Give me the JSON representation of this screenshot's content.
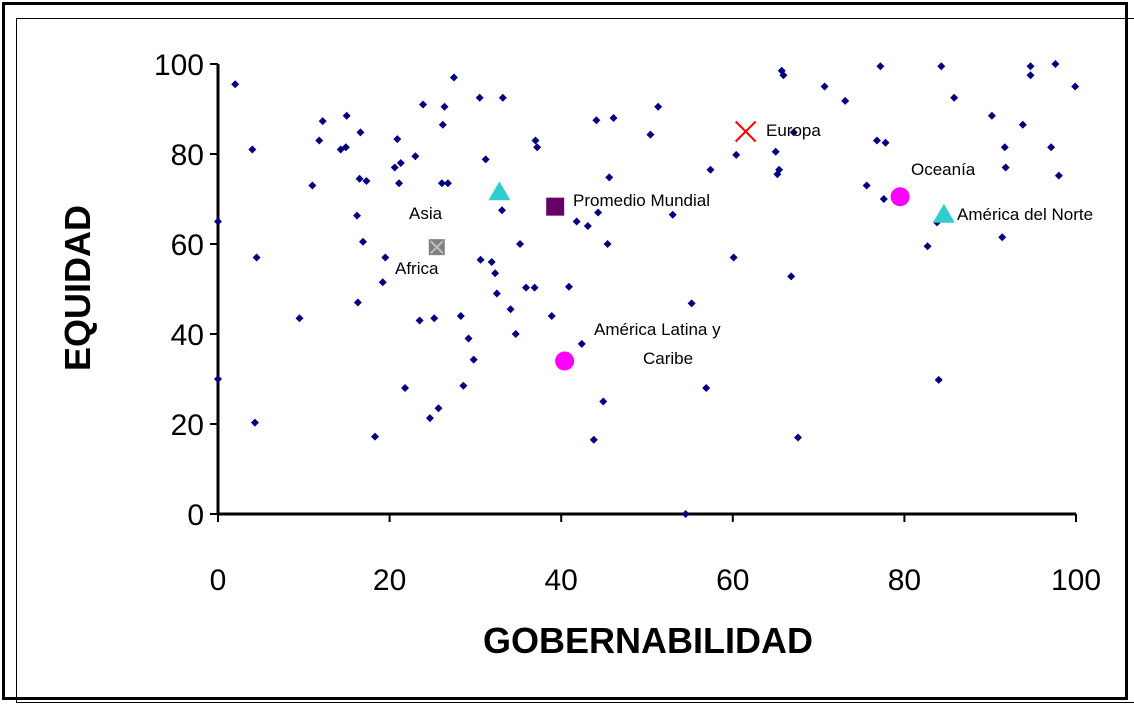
{
  "chart_data": {
    "type": "scatter",
    "xlabel": "GOBERNABILIDAD",
    "ylabel": "EQUIDAD",
    "xlim": [
      0,
      100
    ],
    "ylim": [
      0,
      100
    ],
    "xticks": [
      "0",
      "20",
      "40",
      "60",
      "80",
      "100"
    ],
    "yticks": [
      "0",
      "20",
      "40",
      "60",
      "80",
      "100"
    ],
    "grid": false,
    "legend": "none",
    "colors": {
      "countries": "#000080",
      "europa": "#ff0000",
      "promedio": "#660066",
      "triangle": "#33cccc",
      "circle": "#ff00ff",
      "africa": "#808080"
    },
    "series": [
      {
        "marker": "diamond",
        "points": [
          [
            0,
            65
          ],
          [
            0,
            30
          ],
          [
            2,
            95.5
          ],
          [
            4,
            81
          ],
          [
            4.5,
            57
          ],
          [
            4.3,
            20.3
          ],
          [
            9.5,
            43.5
          ],
          [
            11,
            73
          ],
          [
            11.8,
            83
          ],
          [
            12.2,
            87.3
          ],
          [
            14.3,
            81
          ],
          [
            14.9,
            81.5
          ],
          [
            15,
            88.5
          ],
          [
            16.2,
            66.3
          ],
          [
            16.3,
            47
          ],
          [
            16.5,
            74.5
          ],
          [
            16.6,
            84.8
          ],
          [
            16.9,
            60.5
          ],
          [
            17.3,
            74
          ],
          [
            18.3,
            17.2
          ],
          [
            19.2,
            51.5
          ],
          [
            19.5,
            57
          ],
          [
            20.6,
            77
          ],
          [
            20.9,
            83.3
          ],
          [
            21.1,
            73.5
          ],
          [
            21.3,
            78
          ],
          [
            21.8,
            28
          ],
          [
            23,
            79.5
          ],
          [
            23.5,
            43
          ],
          [
            23.9,
            91
          ],
          [
            24.7,
            21.3
          ],
          [
            25.2,
            43.5
          ],
          [
            25.7,
            23.5
          ],
          [
            26.1,
            73.5
          ],
          [
            26.2,
            86.5
          ],
          [
            26.4,
            90.5
          ],
          [
            26.8,
            73.5
          ],
          [
            27.5,
            97
          ],
          [
            28.3,
            44
          ],
          [
            28.6,
            28.5
          ],
          [
            29.2,
            39
          ],
          [
            29.8,
            34.3
          ],
          [
            30.5,
            92.5
          ],
          [
            30.6,
            56.5
          ],
          [
            31.2,
            78.8
          ],
          [
            31.9,
            56
          ],
          [
            32.3,
            53.5
          ],
          [
            32.5,
            49
          ],
          [
            33.1,
            67.5
          ],
          [
            33.2,
            92.5
          ],
          [
            34.1,
            45.5
          ],
          [
            34.7,
            40
          ],
          [
            35.2,
            60
          ],
          [
            35.9,
            50.3
          ],
          [
            36.9,
            50.3
          ],
          [
            37,
            83
          ],
          [
            37.2,
            81.5
          ],
          [
            38.9,
            44
          ],
          [
            39.5,
            67.5
          ],
          [
            40.9,
            50.5
          ],
          [
            41.8,
            65
          ],
          [
            42.4,
            37.8
          ],
          [
            43.1,
            64
          ],
          [
            43.8,
            16.5
          ],
          [
            44.1,
            87.5
          ],
          [
            44.3,
            67
          ],
          [
            44.9,
            25
          ],
          [
            45.4,
            60
          ],
          [
            45.6,
            74.8
          ],
          [
            46.1,
            88
          ],
          [
            50.4,
            84.3
          ],
          [
            51.3,
            90.5
          ],
          [
            53,
            66.5
          ],
          [
            54.5,
            0
          ],
          [
            55.2,
            46.8
          ],
          [
            56.9,
            28
          ],
          [
            57.4,
            76.5
          ],
          [
            60.1,
            57
          ],
          [
            60.4,
            79.8
          ],
          [
            65,
            80.5
          ],
          [
            65.2,
            75.5
          ],
          [
            65.4,
            76.5
          ],
          [
            65.7,
            98.5
          ],
          [
            65.9,
            97.5
          ],
          [
            66.8,
            52.8
          ],
          [
            67.1,
            84.8
          ],
          [
            67.6,
            17
          ],
          [
            70.7,
            95
          ],
          [
            73.1,
            91.8
          ],
          [
            75.6,
            73
          ],
          [
            76.8,
            83
          ],
          [
            77.2,
            99.5
          ],
          [
            77.6,
            70
          ],
          [
            77.8,
            82.5
          ],
          [
            82.7,
            59.5
          ],
          [
            83.8,
            64.8
          ],
          [
            84,
            29.8
          ],
          [
            84.3,
            99.5
          ],
          [
            85.8,
            92.5
          ],
          [
            90.2,
            88.5
          ],
          [
            91.4,
            61.5
          ],
          [
            91.7,
            81.5
          ],
          [
            91.8,
            77
          ],
          [
            93.8,
            86.5
          ],
          [
            94.7,
            97.5
          ],
          [
            94.7,
            99.5
          ],
          [
            97.1,
            81.5
          ],
          [
            97.6,
            100
          ],
          [
            98,
            75.2
          ],
          [
            99.9,
            95
          ]
        ]
      },
      {
        "name": "Europa",
        "marker": "x",
        "points": [
          [
            61.5,
            85
          ]
        ]
      },
      {
        "name": "Promedio Mundial",
        "marker": "square",
        "points": [
          [
            39.3,
            68.3
          ]
        ]
      },
      {
        "name": "Asia",
        "marker": "triangle",
        "points": [
          [
            32.8,
            71.5
          ]
        ]
      },
      {
        "name": "Africa",
        "marker": "x-box",
        "points": [
          [
            25.5,
            59.3
          ]
        ]
      },
      {
        "name": "Oceanía",
        "marker": "circle",
        "points": [
          [
            79.5,
            70.5
          ]
        ]
      },
      {
        "name": "América del Norte",
        "marker": "triangle",
        "points": [
          [
            84.6,
            66.5
          ]
        ]
      },
      {
        "name": "América Latina y Caribe",
        "marker": "circle",
        "points": [
          [
            40.4,
            34
          ]
        ]
      }
    ],
    "annotations": {
      "europa": "Europa",
      "promedio": "Promedio Mundial",
      "asia": "Asia",
      "africa": "Africa",
      "oceania": "Oceanía",
      "norte": "América del Norte",
      "latina_1": "América Latina y",
      "latina_2": "Caribe"
    }
  }
}
